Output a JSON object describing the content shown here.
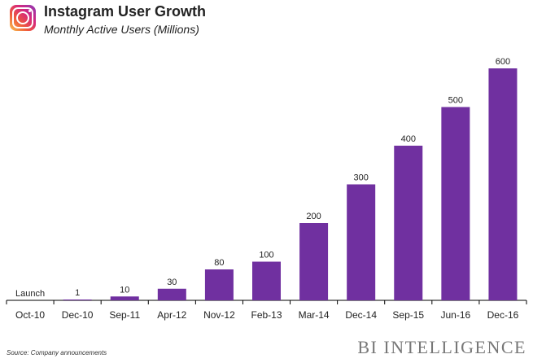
{
  "header": {
    "title": "Instagram User Growth",
    "subtitle": "Monthly Active Users (Millions)"
  },
  "footer": {
    "source": "Source: Company announcements",
    "brand": "BI INTELLIGENCE"
  },
  "logo_icon": "instagram-logo-icon",
  "colors": {
    "bar": "#7030a0",
    "axis": "#000000",
    "text": "#222222"
  },
  "chart_data": {
    "type": "bar",
    "categories": [
      "Oct-10",
      "Dec-10",
      "Sep-11",
      "Apr-12",
      "Nov-12",
      "Feb-13",
      "Mar-14",
      "Dec-14",
      "Sep-15",
      "Jun-16",
      "Dec-16"
    ],
    "values": [
      0,
      1,
      10,
      30,
      80,
      100,
      200,
      300,
      400,
      500,
      600
    ],
    "data_labels": [
      "Launch",
      "1",
      "10",
      "30",
      "80",
      "100",
      "200",
      "300",
      "400",
      "500",
      "600"
    ],
    "title": "Instagram User Growth",
    "subtitle": "Monthly Active Users (Millions)",
    "xlabel": "",
    "ylabel": "",
    "ylim": [
      0,
      600
    ],
    "grid": false,
    "legend": "none"
  }
}
